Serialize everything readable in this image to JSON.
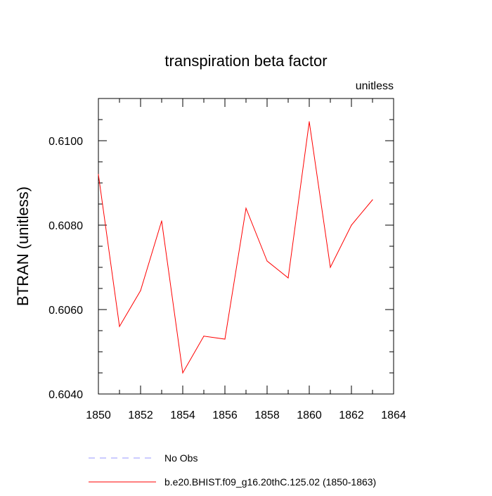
{
  "chart_data": {
    "type": "line",
    "title": "transpiration beta factor",
    "units_label": "unitless",
    "xlabel": "",
    "ylabel": "BTRAN  (unitless)",
    "xlim": [
      1850,
      1864
    ],
    "ylim": [
      0.604,
      0.611
    ],
    "x_ticks": [
      1850,
      1852,
      1854,
      1856,
      1858,
      1860,
      1862,
      1864
    ],
    "y_ticks": [
      0.604,
      0.606,
      0.608,
      0.61
    ],
    "y_tick_labels": [
      "0.6040",
      "0.6060",
      "0.6080",
      "0.6100"
    ],
    "grid": false,
    "series": [
      {
        "name": "b.e20.BHIST.f09_g16.20thC.125.02 (1850-1863)",
        "color": "#ff0000",
        "x": [
          1850,
          1851,
          1852,
          1853,
          1854,
          1855,
          1856,
          1857,
          1858,
          1859,
          1860,
          1861,
          1862,
          1863
        ],
        "values": [
          0.6092,
          0.6056,
          0.60645,
          0.6081,
          0.6045,
          0.60537,
          0.6053,
          0.6084,
          0.60715,
          0.60675,
          0.61045,
          0.607,
          0.608,
          0.6086
        ]
      }
    ],
    "legend": [
      {
        "label": "No Obs",
        "color": "#9999ff",
        "style": "dashed"
      },
      {
        "label": "b.e20.BHIST.f09_g16.20thC.125.02 (1850-1863)",
        "color": "#ff0000",
        "style": "solid"
      }
    ],
    "legend_position": "bottom"
  }
}
